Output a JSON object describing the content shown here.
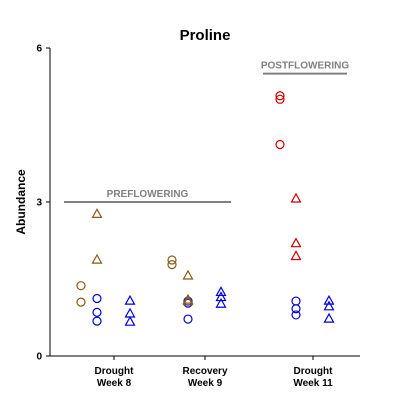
{
  "chart_data": {
    "type": "scatter",
    "title": "Proline",
    "xlabel": "",
    "ylabel": "Abundance",
    "ylim": [
      0,
      6
    ],
    "yticks": [
      "0",
      "3",
      "6"
    ],
    "categories": [
      "Drought\nWeek 8",
      "Recovery\nWeek 9",
      "Drought\nWeek 11"
    ],
    "grid": false,
    "colors": {
      "brown": "#8B5A16",
      "blue": "#0000DD",
      "red": "#CC0000",
      "ref": "#808080"
    },
    "reference_lines": [
      {
        "label": "PREFLOWERING",
        "y": 3.0,
        "from_category": 0,
        "to_category": 1
      },
      {
        "label": "POSTFLOWERING",
        "y": 5.5,
        "from_category": 2,
        "to_category": 2
      }
    ],
    "series": [
      {
        "category": 0,
        "slot": 0,
        "marker": "circle",
        "color": "brown",
        "values": [
          1.37,
          1.05
        ]
      },
      {
        "category": 0,
        "slot": 1,
        "marker": "circle",
        "color": "blue",
        "values": [
          1.12,
          0.85,
          0.68
        ]
      },
      {
        "category": 0,
        "slot": 1,
        "marker": "triangle",
        "color": "brown",
        "values": [
          2.77,
          1.88
        ]
      },
      {
        "category": 0,
        "slot": 2,
        "marker": "triangle",
        "color": "blue",
        "values": [
          1.08,
          0.83,
          0.67
        ]
      },
      {
        "category": 1,
        "slot": 0,
        "marker": "circle",
        "color": "brown",
        "values": [
          1.87,
          1.78
        ]
      },
      {
        "category": 1,
        "slot": 1,
        "marker": "circle",
        "color": "blue",
        "values": [
          1.07,
          1.03,
          0.72
        ]
      },
      {
        "category": 1,
        "slot": 1,
        "marker": "triangle",
        "color": "brown",
        "values": [
          1.57,
          1.1,
          1.07
        ]
      },
      {
        "category": 1,
        "slot": 2,
        "marker": "triangle",
        "color": "blue",
        "values": [
          1.25,
          1.15,
          1.02
        ]
      },
      {
        "category": 2,
        "slot": 0,
        "marker": "circle",
        "color": "red",
        "values": [
          5.07,
          5.0,
          4.12
        ]
      },
      {
        "category": 2,
        "slot": 0.5,
        "marker": "circle",
        "color": "blue",
        "values": [
          1.07,
          0.92,
          0.8
        ]
      },
      {
        "category": 2,
        "slot": 1,
        "marker": "triangle",
        "color": "red",
        "values": [
          3.07,
          2.2,
          1.95
        ]
      },
      {
        "category": 2,
        "slot": 2,
        "marker": "triangle",
        "color": "blue",
        "values": [
          1.08,
          0.97,
          0.73
        ]
      }
    ]
  }
}
